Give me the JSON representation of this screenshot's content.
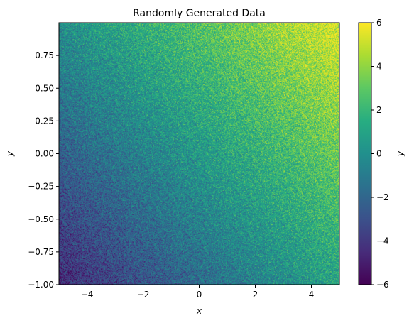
{
  "chart_data": {
    "type": "heatmap",
    "title": "Randomly Generated Data",
    "xlabel": "x",
    "ylabel": "y",
    "xlim": [
      -5,
      5
    ],
    "ylim": [
      -1,
      1
    ],
    "x_ticks": [
      -4,
      -2,
      0,
      2,
      4
    ],
    "x_tick_labels": [
      "−4",
      "−2",
      "0",
      "2",
      "4"
    ],
    "y_ticks": [
      -1.0,
      -0.75,
      -0.5,
      -0.25,
      0.0,
      0.25,
      0.5,
      0.75
    ],
    "y_tick_labels": [
      "−1.00",
      "−0.75",
      "−0.50",
      "−0.25",
      "0.00",
      "0.25",
      "0.50",
      "0.75"
    ],
    "colorbar": {
      "label": "y",
      "colormap": "viridis",
      "range": [
        -6,
        6
      ],
      "ticks": [
        -6,
        -4,
        -2,
        0,
        2,
        4,
        6
      ],
      "tick_labels": [
        "−6",
        "−4",
        "−2",
        "0",
        "2",
        "4",
        "6"
      ]
    },
    "trend": {
      "description_of_value": "noisy field increasing with x and y",
      "low_corner_value": -4.5,
      "high_corner_value": 5.5,
      "noise_amplitude": 1.4
    }
  }
}
